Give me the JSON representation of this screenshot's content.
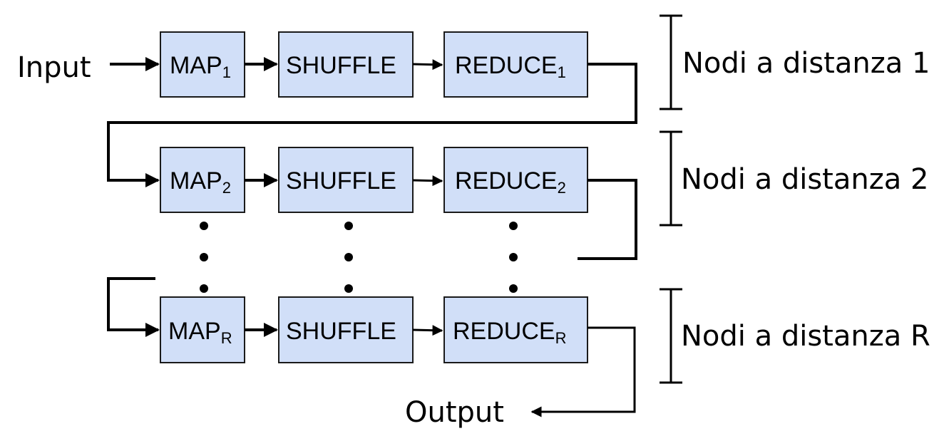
{
  "input_label": "Input",
  "output_label": "Output",
  "rows": [
    {
      "map": {
        "label": "MAP",
        "sub": "1"
      },
      "shuffle": {
        "label": "SHUFFLE"
      },
      "reduce": {
        "label": "REDUCE",
        "sub": "1"
      },
      "distance_label": "Nodi a distanza 1"
    },
    {
      "map": {
        "label": "MAP",
        "sub": "2"
      },
      "shuffle": {
        "label": "SHUFFLE"
      },
      "reduce": {
        "label": "REDUCE",
        "sub": "2"
      },
      "distance_label": "Nodi a distanza 2"
    },
    {
      "map": {
        "label": "MAP",
        "sub": "R"
      },
      "shuffle": {
        "label": "SHUFFLE"
      },
      "reduce": {
        "label": "REDUCE",
        "sub": "R"
      },
      "distance_label": "Nodi a distanza R"
    }
  ],
  "colors": {
    "box_fill": "#d1dff8",
    "stroke": "#000000"
  }
}
